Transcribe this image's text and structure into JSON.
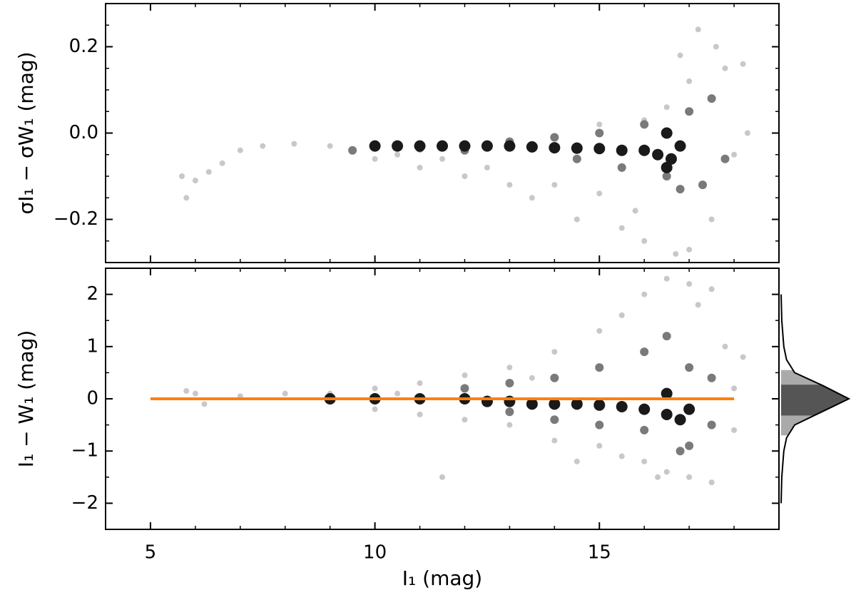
{
  "chart_data": [
    {
      "type": "scatter",
      "ylabel": "σI₁ − σW₁ (mag)",
      "xlim": [
        4,
        19
      ],
      "ylim": [
        -0.3,
        0.3
      ],
      "xticks": [
        5,
        10,
        15
      ],
      "show_xticklabels": false,
      "yticks": [
        {
          "value": -0.2,
          "label": "−0.2"
        },
        {
          "value": 0,
          "label": "0.0"
        },
        0.2
      ],
      "xminor": [
        4,
        6,
        7,
        8,
        9,
        11,
        12,
        13,
        14,
        16,
        17,
        18,
        19
      ],
      "yminor": [
        -0.25,
        -0.15,
        -0.1,
        -0.05,
        0.05,
        0.1,
        0.15,
        0.25
      ],
      "series": [
        {
          "color": "#c8c8c8",
          "size": 4,
          "x": [
            5.7,
            5.8,
            6.0,
            6.3,
            6.6,
            7.0,
            7.5,
            8.2,
            9.0,
            10.0,
            11,
            12,
            13,
            14,
            14.5,
            15,
            15.5,
            16,
            16.7,
            17,
            17.2,
            17.6,
            17.8,
            18.2,
            17.0,
            16.5,
            16,
            15,
            18,
            18.3,
            12.5,
            13.5,
            15.8,
            17.5,
            16.8,
            10.5,
            11.5,
            9.5
          ],
          "y": [
            -0.1,
            -0.15,
            -0.11,
            -0.09,
            -0.07,
            -0.04,
            -0.03,
            -0.025,
            -0.03,
            -0.06,
            -0.08,
            -0.1,
            -0.12,
            -0.12,
            -0.2,
            -0.14,
            -0.22,
            -0.25,
            -0.28,
            -0.27,
            0.24,
            0.2,
            0.15,
            0.16,
            0.12,
            0.06,
            0.03,
            0.02,
            -0.05,
            0.0,
            -0.08,
            -0.15,
            -0.18,
            -0.2,
            0.18,
            -0.05,
            -0.06,
            -0.04
          ]
        },
        {
          "color": "#7a7a7a",
          "size": 6,
          "x": [
            9.5,
            11,
            12,
            13,
            14,
            15,
            15.5,
            16,
            16.5,
            17,
            17.3,
            17.5,
            16.8,
            17.8,
            14.5
          ],
          "y": [
            -0.04,
            -0.035,
            -0.04,
            -0.02,
            -0.01,
            0.0,
            -0.08,
            0.02,
            -0.1,
            0.05,
            -0.12,
            0.08,
            -0.13,
            -0.06,
            -0.06
          ]
        },
        {
          "color": "#1a1a1a",
          "size": 8,
          "x": [
            10,
            10.5,
            11,
            11.5,
            12,
            12.5,
            13,
            13.5,
            14,
            14.5,
            15,
            15.5,
            16,
            16.3,
            16.6,
            16.8,
            16.5,
            16.5
          ],
          "y": [
            -0.03,
            -0.03,
            -0.03,
            -0.03,
            -0.03,
            -0.03,
            -0.03,
            -0.032,
            -0.034,
            -0.035,
            -0.036,
            -0.04,
            -0.04,
            -0.05,
            -0.06,
            -0.03,
            -0.08,
            0.0
          ]
        }
      ]
    },
    {
      "type": "scatter",
      "xlabel": "I₁ (mag)",
      "ylabel": "I₁ − W₁ (mag)",
      "xlim": [
        4,
        19
      ],
      "ylim": [
        -2.5,
        2.5
      ],
      "xticks": [
        5,
        10,
        15
      ],
      "show_xticklabels": true,
      "yticks": [
        {
          "value": -2,
          "label": "−2"
        },
        {
          "value": -1,
          "label": "−1"
        },
        0,
        1,
        2
      ],
      "xminor": [
        4,
        6,
        7,
        8,
        9,
        11,
        12,
        13,
        14,
        16,
        17,
        18,
        19
      ],
      "yminor": [
        -2.5,
        -1.5,
        -0.5,
        0.5,
        1.5,
        2.5
      ],
      "series": [
        {
          "color": "#c8c8c8",
          "size": 4,
          "x": [
            5.8,
            6,
            6.2,
            7,
            8,
            9,
            10,
            10,
            11,
            11,
            12,
            12,
            13,
            13,
            14,
            14,
            14.5,
            15,
            15,
            15.5,
            15.5,
            16,
            16,
            16.5,
            16.5,
            17,
            17,
            17.2,
            17.5,
            17.8,
            18,
            18.2,
            18,
            11.5,
            16.3,
            17.5,
            13.5,
            10.5
          ],
          "y": [
            0.15,
            0.1,
            -0.1,
            0.05,
            0.1,
            0.1,
            -0.2,
            0.2,
            0.3,
            -0.3,
            0.45,
            -0.4,
            0.6,
            -0.5,
            0.9,
            -0.8,
            -1.2,
            1.3,
            -0.9,
            1.6,
            -1.1,
            2.0,
            -1.2,
            2.3,
            -1.4,
            2.2,
            -1.5,
            1.8,
            2.1,
            1.0,
            0.2,
            0.8,
            -0.6,
            -1.5,
            -1.5,
            -1.6,
            0.4,
            0.1
          ]
        },
        {
          "color": "#7a7a7a",
          "size": 6,
          "x": [
            12,
            13,
            13,
            14,
            14,
            15,
            15,
            16,
            16,
            16.5,
            17,
            17,
            17.5,
            17.5,
            16.8
          ],
          "y": [
            0.2,
            -0.25,
            0.3,
            -0.4,
            0.4,
            0.6,
            -0.5,
            0.9,
            -0.6,
            1.2,
            -0.9,
            0.6,
            -0.5,
            0.4,
            -1.0
          ]
        },
        {
          "color": "#1a1a1a",
          "size": 8,
          "x": [
            9,
            10,
            11,
            12,
            12.5,
            13,
            13.5,
            14,
            14.5,
            15,
            15.5,
            16,
            16.5,
            16.8,
            17,
            16.5
          ],
          "y": [
            0,
            0,
            0,
            0,
            -0.05,
            -0.05,
            -0.1,
            -0.1,
            -0.1,
            -0.12,
            -0.15,
            -0.2,
            -0.3,
            -0.4,
            -0.2,
            0.1
          ]
        }
      ],
      "reference_line": {
        "x": [
          5,
          18
        ],
        "y": [
          0,
          0
        ],
        "color": "#ff7f0e"
      }
    },
    {
      "type": "density",
      "ylim": [
        -2.5,
        2.5
      ],
      "xlim": [
        0,
        1
      ],
      "y": [
        -2,
        -1.5,
        -1,
        -0.75,
        -0.5,
        -0.25,
        0,
        0.25,
        0.5,
        0.75,
        1,
        1.5,
        2
      ],
      "values": [
        0,
        0.01,
        0.04,
        0.08,
        0.2,
        0.6,
        1,
        0.62,
        0.2,
        0.08,
        0.04,
        0.01,
        0
      ],
      "bands": [
        {
          "range": [
            -0.7,
            0.55
          ],
          "color": "#aaaaaa"
        },
        {
          "range": [
            -0.32,
            0.27
          ],
          "color": "#555555"
        }
      ]
    }
  ]
}
